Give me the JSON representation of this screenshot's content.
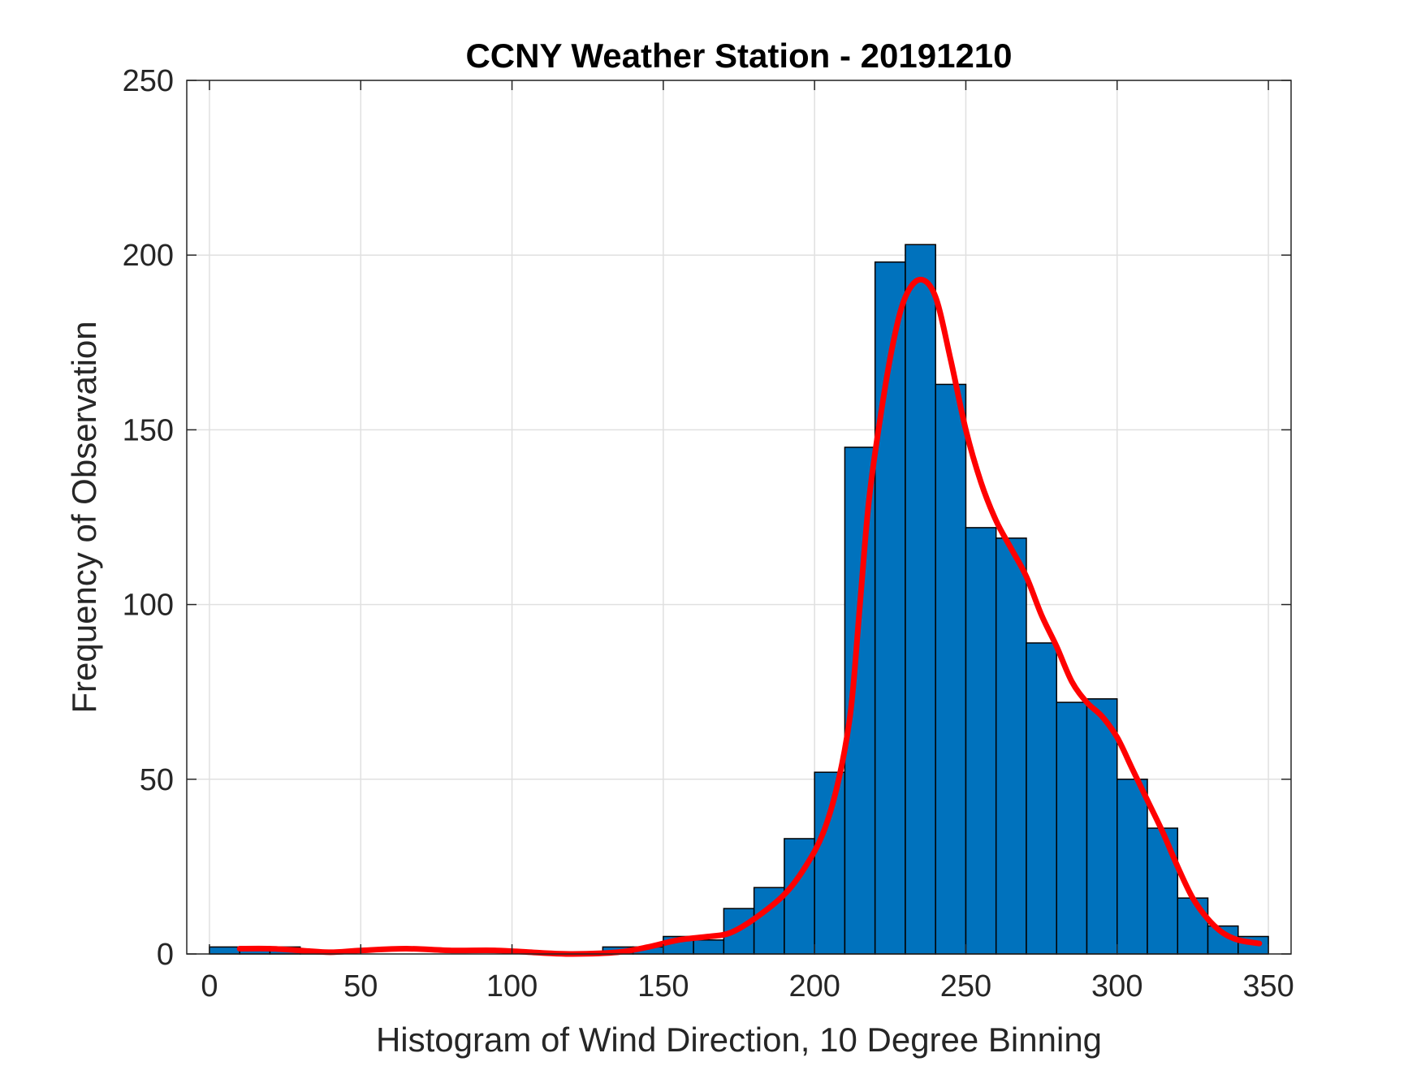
{
  "chart_data": {
    "type": "bar",
    "title": "CCNY Weather Station - 20191210",
    "xlabel": "Histogram of Wind Direction, 10 Degree Binning",
    "ylabel": "Frequency of Observation",
    "xlim": [
      -7.5,
      357.5
    ],
    "ylim": [
      0,
      250
    ],
    "xticks": [
      0,
      50,
      100,
      150,
      200,
      250,
      300,
      350
    ],
    "yticks": [
      0,
      50,
      100,
      150,
      200,
      250
    ],
    "grid": true,
    "bin_edges_start": [
      0,
      10,
      20,
      30,
      40,
      50,
      60,
      70,
      80,
      90,
      100,
      110,
      120,
      130,
      140,
      150,
      160,
      170,
      180,
      190,
      200,
      210,
      220,
      230,
      240,
      250,
      260,
      270,
      280,
      290,
      300,
      310,
      320,
      330,
      340
    ],
    "bin_width": 10,
    "values": [
      2,
      1,
      2,
      1,
      0,
      0,
      0,
      0,
      0,
      0,
      0,
      0,
      0,
      2,
      2,
      5,
      4,
      13,
      19,
      33,
      52,
      145,
      198,
      203,
      163,
      122,
      119,
      89,
      72,
      73,
      50,
      36,
      16,
      8,
      5
    ],
    "bar_color": "#0072BD",
    "fit_curve": {
      "color": "#FF0000",
      "x": [
        10,
        20,
        30,
        40,
        50,
        65,
        80,
        95,
        110,
        120,
        135,
        145,
        155,
        165,
        172,
        180,
        190,
        197,
        203,
        208,
        212,
        215,
        218,
        222,
        226,
        230,
        235,
        240,
        245,
        250,
        255,
        260,
        265,
        270,
        275,
        280,
        285,
        290,
        295,
        300,
        305,
        310,
        315,
        320,
        325,
        330,
        335,
        340,
        347
      ],
      "y": [
        1.5,
        1.5,
        1,
        0.5,
        1,
        1.5,
        1,
        1,
        0.3,
        0,
        0.5,
        2,
        4,
        5,
        6,
        10,
        17,
        25,
        35,
        50,
        70,
        100,
        130,
        155,
        175,
        188,
        193,
        188,
        170,
        150,
        135,
        124,
        116,
        108,
        97,
        88,
        78,
        72,
        68,
        62,
        53,
        44,
        35,
        25,
        16,
        10,
        6,
        4,
        3
      ]
    }
  }
}
